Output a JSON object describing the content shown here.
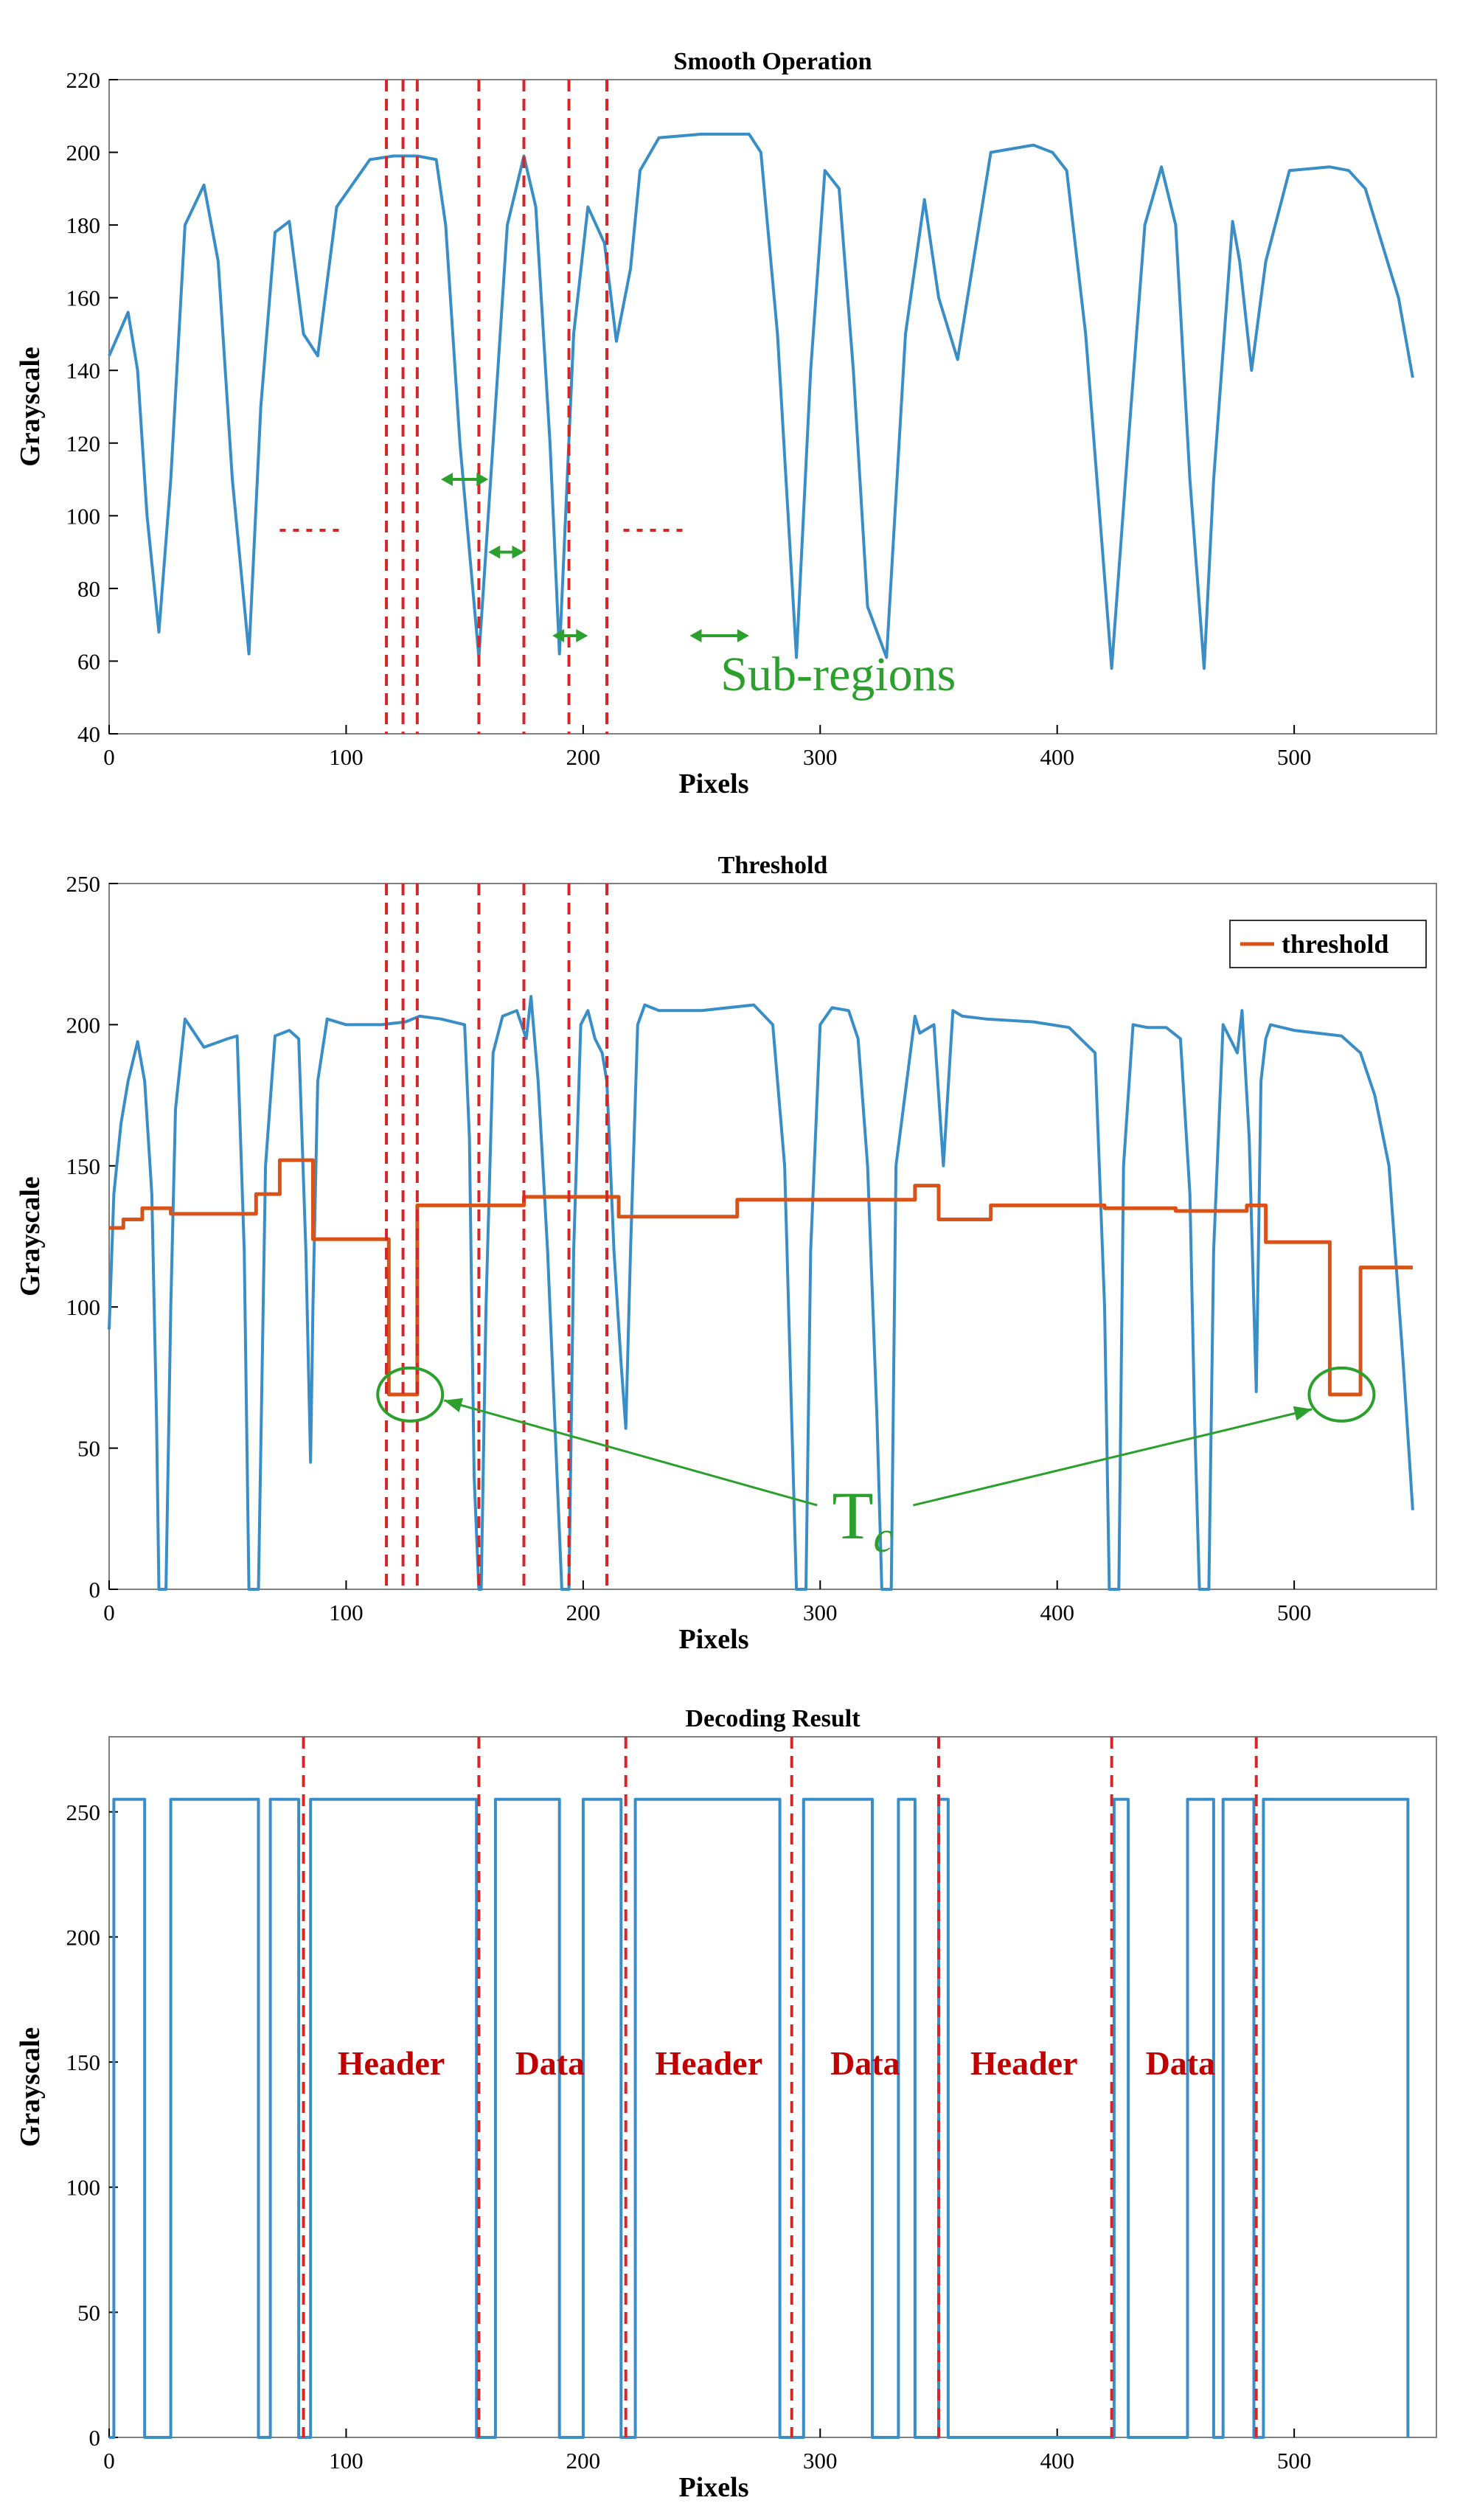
{
  "colors": {
    "signal": "#3a8ec8",
    "threshold": "#d95319",
    "marker": "#d62728",
    "annotation": "#2ca02c",
    "axis": "#000000",
    "frame": "#808080"
  },
  "chart_data": [
    {
      "type": "line",
      "title": "Smooth Operation",
      "xlabel": "Pixels",
      "ylabel": "Grayscale",
      "xlim": [
        0,
        560
      ],
      "ylim": [
        40,
        220
      ],
      "xticks": [
        "0",
        "100",
        "200",
        "300",
        "400",
        "500"
      ],
      "yticks": [
        "40",
        "60",
        "80",
        "100",
        "120",
        "140",
        "160",
        "180",
        "200",
        "220"
      ],
      "series": [
        {
          "x": [
            0,
            4,
            8,
            12,
            16,
            21,
            26,
            32,
            40,
            46,
            52,
            59,
            64,
            70,
            76,
            82,
            88,
            96,
            110,
            120,
            130,
            138,
            142,
            148,
            156,
            162,
            168,
            175,
            180,
            186,
            190,
            196,
            202,
            209,
            214,
            220,
            224,
            232,
            250,
            270,
            275,
            282,
            290,
            296,
            302,
            308,
            314,
            320,
            328,
            336,
            344,
            350,
            358,
            372,
            390,
            398,
            404,
            412,
            423,
            430,
            437,
            444,
            450,
            456,
            462,
            466,
            474,
            477,
            482,
            488,
            498,
            515,
            523,
            530,
            537,
            544,
            550
          ],
          "values": [
            144,
            150,
            156,
            140,
            100,
            68,
            110,
            180,
            191,
            170,
            110,
            62,
            130,
            178,
            181,
            150,
            144,
            185,
            198,
            199,
            199,
            198,
            180,
            120,
            61,
            120,
            180,
            199,
            185,
            120,
            62,
            150,
            185,
            175,
            148,
            168,
            195,
            204,
            205,
            205,
            200,
            150,
            61,
            140,
            195,
            190,
            140,
            75,
            61,
            150,
            187,
            160,
            143,
            200,
            202,
            200,
            195,
            150,
            58,
            120,
            180,
            196,
            180,
            110,
            58,
            110,
            181,
            170,
            140,
            170,
            195,
            196,
            195,
            190,
            175,
            160,
            138
          ]
        }
      ],
      "vlines": [
        117,
        124,
        130,
        156,
        175,
        194,
        210
      ],
      "hdots": [
        [
          72,
          97,
          96
        ],
        [
          217,
          243,
          96
        ]
      ],
      "arrows": [
        [
          140,
          160,
          110
        ],
        [
          160,
          175,
          90
        ],
        [
          187,
          202,
          67
        ],
        [
          245,
          270,
          67
        ]
      ],
      "annotations": [
        {
          "text": "Sub-regions",
          "x": 258,
          "y": 52
        }
      ]
    },
    {
      "type": "line",
      "title": "Threshold",
      "xlabel": "Pixels",
      "ylabel": "Grayscale",
      "xlim": [
        0,
        560
      ],
      "ylim": [
        0,
        250
      ],
      "xticks": [
        "0",
        "100",
        "200",
        "300",
        "400",
        "500"
      ],
      "yticks": [
        "0",
        "50",
        "100",
        "150",
        "200",
        "250"
      ],
      "legend": {
        "position": "top-right",
        "entries": [
          "threshold"
        ]
      },
      "series": [
        {
          "x": [
            0,
            2,
            5,
            8,
            12,
            15,
            18,
            20,
            21,
            23,
            24,
            26,
            28,
            32,
            40,
            50,
            54,
            57,
            59,
            61,
            63,
            66,
            70,
            76,
            80,
            83,
            85,
            86,
            88,
            92,
            100,
            115,
            125,
            131,
            140,
            150,
            152,
            154,
            156,
            157,
            159,
            162,
            166,
            172,
            176,
            178,
            181,
            185,
            188,
            191,
            192,
            194,
            196,
            199,
            202,
            205,
            208,
            210,
            213,
            216,
            218,
            220,
            223,
            226,
            232,
            250,
            272,
            280,
            285,
            288,
            290,
            292,
            294,
            296,
            300,
            305,
            312,
            316,
            320,
            324,
            326,
            328,
            330,
            332,
            340,
            342,
            348,
            352,
            356,
            360,
            370,
            390,
            405,
            416,
            420,
            422,
            424,
            426,
            428,
            432,
            438,
            446,
            452,
            456,
            458,
            460,
            462,
            464,
            466,
            470,
            476,
            478,
            481,
            484,
            486,
            488,
            490,
            500,
            520,
            528,
            534,
            540,
            546,
            550
          ],
          "values": [
            92,
            140,
            165,
            180,
            194,
            180,
            140,
            60,
            0,
            0,
            0,
            100,
            170,
            202,
            192,
            195,
            196,
            120,
            0,
            0,
            0,
            150,
            196,
            198,
            195,
            120,
            45,
            100,
            180,
            202,
            200,
            200,
            201,
            203,
            202,
            200,
            160,
            40,
            0,
            0,
            100,
            190,
            203,
            205,
            195,
            210,
            180,
            120,
            60,
            0,
            0,
            0,
            120,
            200,
            205,
            195,
            190,
            180,
            120,
            80,
            57,
            120,
            200,
            207,
            205,
            205,
            207,
            200,
            150,
            60,
            0,
            0,
            0,
            120,
            200,
            206,
            205,
            195,
            150,
            60,
            0,
            0,
            0,
            150,
            203,
            197,
            200,
            150,
            205,
            203,
            202,
            201,
            199,
            190,
            100,
            0,
            0,
            0,
            150,
            200,
            199,
            199,
            195,
            140,
            60,
            0,
            0,
            0,
            120,
            200,
            190,
            205,
            160,
            70,
            180,
            195,
            200,
            198,
            196,
            190,
            175,
            150,
            80,
            28
          ]
        },
        {
          "name": "threshold",
          "x": [
            0,
            6,
            6,
            14,
            14,
            26,
            26,
            40,
            40,
            62,
            62,
            72,
            72,
            80,
            80,
            86,
            86,
            118,
            118,
            130,
            130,
            138,
            138,
            175,
            175,
            215,
            215,
            265,
            265,
            340,
            340,
            350,
            350,
            372,
            372,
            420,
            420,
            450,
            450,
            480,
            480,
            488,
            488,
            515,
            515,
            522,
            522,
            528,
            528,
            550
          ],
          "values": [
            128,
            128,
            131,
            131,
            135,
            135,
            133,
            133,
            133,
            133,
            140,
            140,
            152,
            152,
            152,
            152,
            124,
            124,
            69,
            69,
            136,
            136,
            136,
            136,
            139,
            139,
            132,
            132,
            138,
            138,
            143,
            143,
            131,
            131,
            136,
            136,
            135,
            135,
            134,
            134,
            136,
            136,
            123,
            123,
            69,
            69,
            69,
            69,
            114,
            114
          ]
        }
      ],
      "vlines": [
        117,
        124,
        130,
        156,
        175,
        194,
        210
      ],
      "circles": [
        [
          127,
          69
        ],
        [
          520,
          69
        ]
      ],
      "annotations": [
        {
          "text": "T",
          "sub": "c",
          "x": 305,
          "y": 18
        }
      ]
    },
    {
      "type": "line",
      "title": "Decoding Result",
      "xlabel": "Pixels",
      "ylabel": "Grayscale",
      "xlim": [
        0,
        560
      ],
      "ylim": [
        0,
        280
      ],
      "xticks": [
        "0",
        "100",
        "200",
        "300",
        "400",
        "500"
      ],
      "yticks": [
        "0",
        "50",
        "100",
        "150",
        "200",
        "250"
      ],
      "series": [
        {
          "x": [
            0,
            2,
            2,
            15,
            15,
            26,
            26,
            47,
            47,
            63,
            63,
            68,
            68,
            80,
            80,
            85,
            85,
            155,
            155,
            163,
            163,
            190,
            190,
            200,
            200,
            210,
            210,
            216,
            216,
            222,
            222,
            283,
            283,
            293,
            293,
            322,
            322,
            333,
            333,
            340,
            340,
            350,
            350,
            354,
            354,
            424,
            424,
            430,
            430,
            455,
            455,
            466,
            466,
            470,
            470,
            483,
            483,
            487,
            487,
            548,
            548
          ],
          "values": [
            0,
            0,
            255,
            255,
            0,
            0,
            255,
            255,
            255,
            255,
            0,
            0,
            255,
            255,
            0,
            0,
            255,
            255,
            0,
            0,
            255,
            255,
            0,
            0,
            255,
            255,
            255,
            255,
            0,
            0,
            255,
            255,
            0,
            0,
            255,
            255,
            0,
            0,
            255,
            255,
            0,
            0,
            255,
            255,
            0,
            0,
            255,
            255,
            0,
            0,
            255,
            255,
            0,
            0,
            255,
            255,
            0,
            0,
            255,
            255,
            0
          ]
        }
      ],
      "vlines": [
        82,
        156,
        218,
        288,
        350,
        423,
        484
      ],
      "region_labels": [
        {
          "text": "Header",
          "x": 119
        },
        {
          "text": "Data",
          "x": 186
        },
        {
          "text": "Header",
          "x": 253
        },
        {
          "text": "Data",
          "x": 319
        },
        {
          "text": "Header",
          "x": 386
        },
        {
          "text": "Data",
          "x": 452
        }
      ],
      "region_label_y": 145
    }
  ]
}
